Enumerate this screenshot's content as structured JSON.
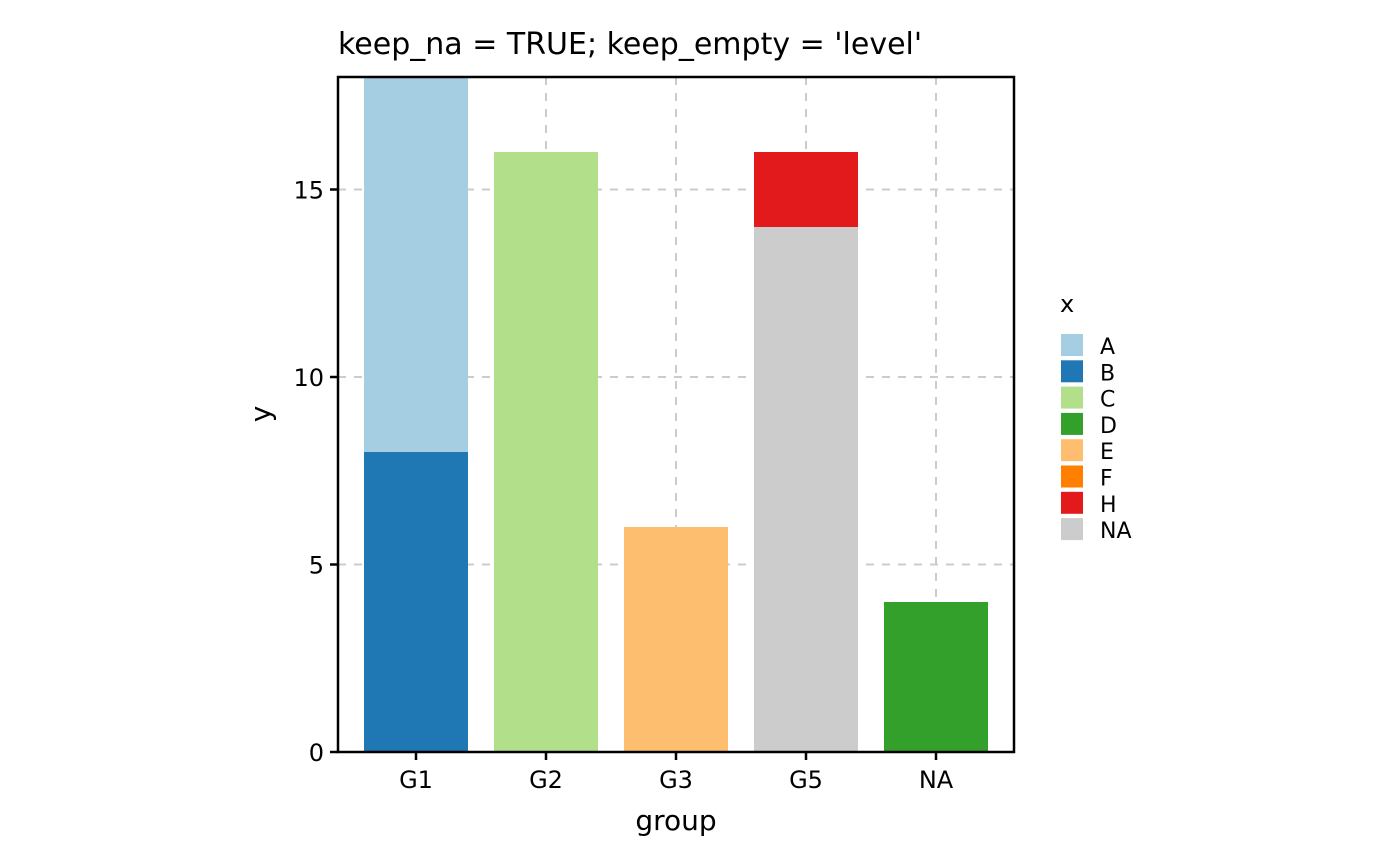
{
  "chart_data": {
    "type": "bar",
    "stacked": true,
    "title": "keep_na = TRUE; keep_empty = 'level'",
    "xlabel": "group",
    "ylabel": "y",
    "categories": [
      "G1",
      "G2",
      "G3",
      "G5",
      "NA"
    ],
    "ylim": [
      0,
      18
    ],
    "yticks": [
      0,
      5,
      10,
      15
    ],
    "grid": true,
    "series": [
      {
        "name": "A",
        "color": "#A6CEE3",
        "values": [
          10,
          0,
          0,
          0,
          0
        ]
      },
      {
        "name": "B",
        "color": "#1F78B4",
        "values": [
          8,
          0,
          0,
          0,
          0
        ]
      },
      {
        "name": "C",
        "color": "#B2DF8A",
        "values": [
          0,
          16,
          0,
          0,
          0
        ]
      },
      {
        "name": "D",
        "color": "#33A02C",
        "values": [
          0,
          0,
          0,
          0,
          4
        ]
      },
      {
        "name": "E",
        "color": "#FDBF6F",
        "values": [
          0,
          0,
          6,
          0,
          0
        ]
      },
      {
        "name": "F",
        "color": "#FF7F00",
        "values": [
          0,
          0,
          0,
          0,
          0
        ]
      },
      {
        "name": "H",
        "color": "#E31A1C",
        "values": [
          0,
          0,
          0,
          2,
          0
        ]
      },
      {
        "name": "NA",
        "color": "#CCCCCC",
        "values": [
          0,
          0,
          0,
          14,
          0
        ]
      }
    ],
    "stack_order_bottom_to_top": [
      "B",
      "A",
      "C",
      "D",
      "E",
      "NA",
      "H",
      "F"
    ],
    "legend": {
      "title": "x",
      "position": "right"
    }
  }
}
